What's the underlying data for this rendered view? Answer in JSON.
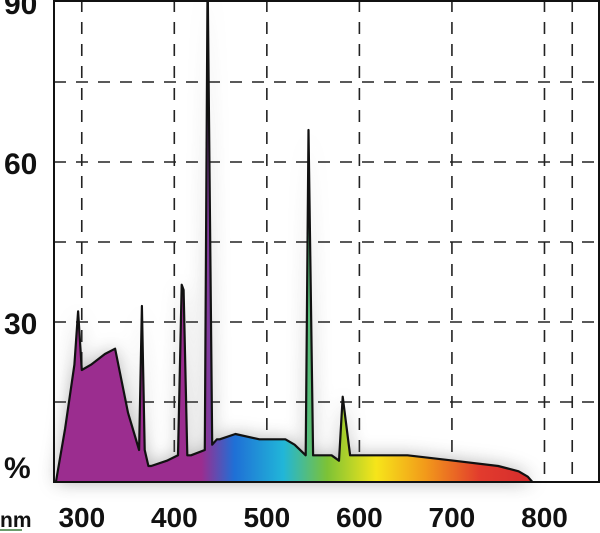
{
  "chart_data": {
    "type": "area",
    "title": "",
    "xlabel": "nm",
    "ylabel": "%",
    "xlim": [
      270,
      860
    ],
    "ylim": [
      0,
      90
    ],
    "x_ticks": [
      300,
      400,
      500,
      600,
      700,
      800
    ],
    "x_tick_labels": [
      "300",
      "400",
      "500",
      "600",
      "700",
      "800"
    ],
    "y_ticks": [
      0,
      30,
      60,
      90
    ],
    "y_tick_labels": [
      "%",
      "30",
      "60",
      "90"
    ],
    "grid": true,
    "fill": "visible-spectrum gradient",
    "series": [
      {
        "x": [
          272,
          282,
          292,
          296,
          300,
          310,
          325,
          336,
          350,
          362,
          365,
          368,
          372,
          375,
          392,
          404,
          408,
          410,
          414,
          418,
          433,
          436,
          441,
          446,
          449,
          466,
          492,
          520,
          530,
          542,
          545,
          550,
          554,
          570,
          578,
          582,
          590,
          618,
          652,
          702,
          750,
          772,
          782,
          787
        ],
        "y": [
          0,
          10,
          22,
          32,
          21,
          22,
          24,
          25,
          13,
          6,
          33,
          6,
          3,
          3,
          4,
          5,
          37,
          36,
          5,
          5,
          6,
          95,
          7,
          8,
          8,
          9,
          8,
          8,
          7,
          5,
          66,
          5,
          5,
          5,
          4,
          16,
          5,
          5,
          5,
          4,
          3,
          2,
          1,
          0
        ]
      }
    ],
    "colors": {
      "violet": "#9b2d8f",
      "blue": "#1f6fd6",
      "cyan": "#21b6d8",
      "green": "#7cc236",
      "yellow": "#f6e51a",
      "orange": "#f29a1a",
      "red": "#e23b2d",
      "deep-red": "#c2182c"
    }
  }
}
